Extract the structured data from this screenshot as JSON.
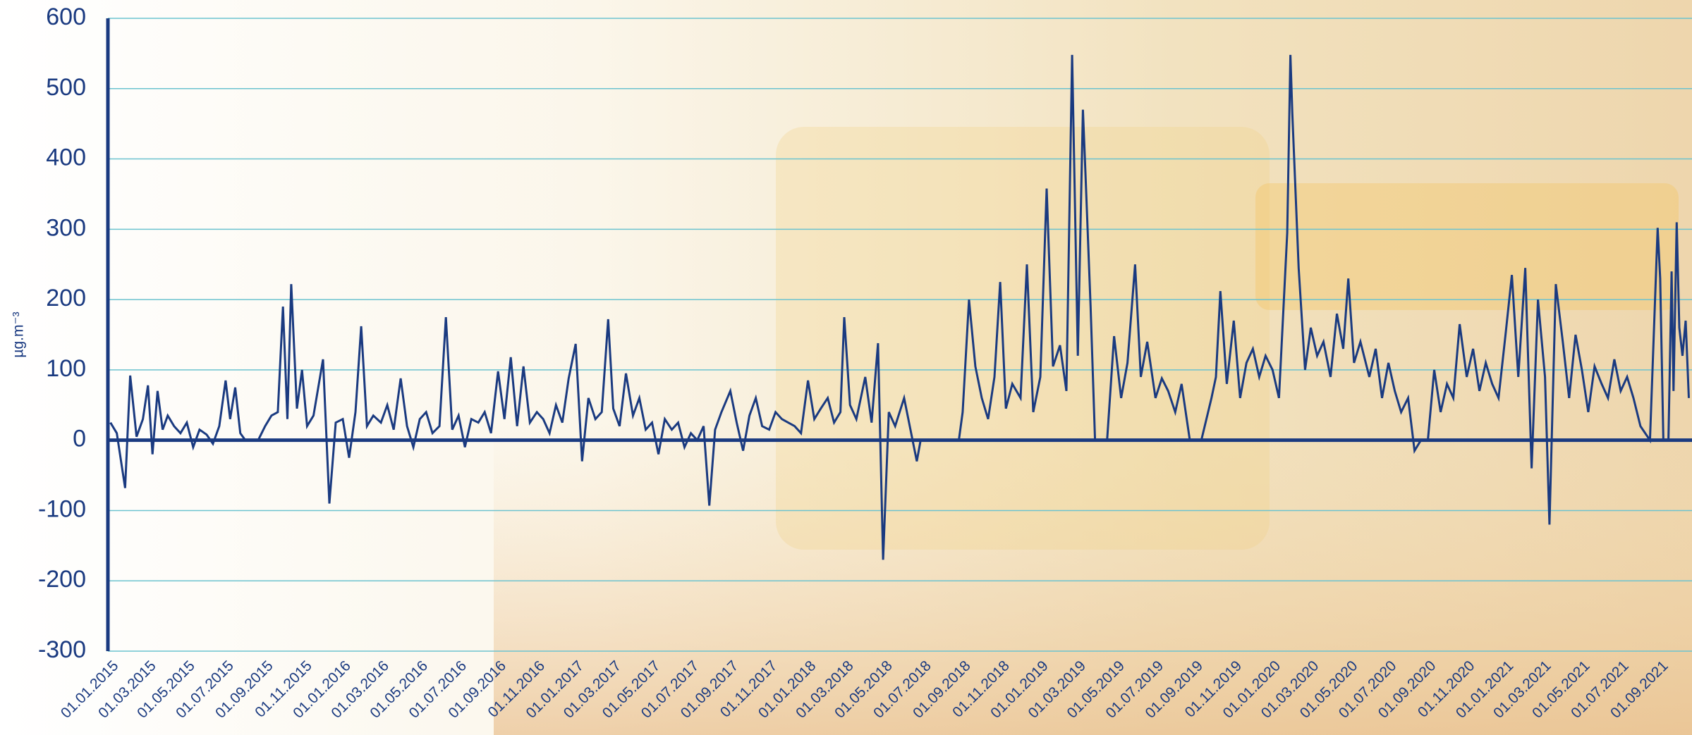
{
  "chart_data": {
    "type": "line",
    "y_label": "µg.m⁻³",
    "color": "#1a3a80",
    "grid": true,
    "grid_color": "#6cc3cf",
    "xlim": [
      "01.01.2015",
      "25.10.2021"
    ],
    "ylim": [
      -300,
      600
    ],
    "yticks": [
      -300,
      -200,
      -100,
      0,
      100,
      200,
      300,
      400,
      500,
      600
    ],
    "xticks": [
      "01.01.2015",
      "01.03.2015",
      "01.05.2015",
      "01.07.2015",
      "01.09.2015",
      "01.11.2015",
      "01.01.2016",
      "01.03.2016",
      "01.05.2016",
      "01.07.2016",
      "01.09.2016",
      "01.11.2016",
      "01.01.2017",
      "01.03.2017",
      "01.05.2017",
      "01.07.2017",
      "01.09.2017",
      "01.11.2017",
      "01.01.2018",
      "01.03.2018",
      "01.05.2018",
      "01.07.2018",
      "01.09.2018",
      "01.11.2018",
      "01.01.2019",
      "01.03.2019",
      "01.05.2019",
      "01.07.2019",
      "01.09.2019",
      "01.11.2019",
      "01.01.2020",
      "01.03.2020",
      "01.05.2020",
      "01.07.2020",
      "01.09.2020",
      "01.11.2020",
      "01.01.2021",
      "01.03.2021",
      "01.05.2021",
      "01.07.2021",
      "01.09.2021"
    ],
    "x": [
      "05.01.2015",
      "15.01.2015",
      "28.01.2015",
      "05.02.2015",
      "15.02.2015",
      "25.02.2015",
      "05.03.2015",
      "12.03.2015",
      "20.03.2015",
      "28.03.2015",
      "05.04.2015",
      "15.04.2015",
      "25.04.2015",
      "05.05.2015",
      "15.05.2015",
      "25.05.2015",
      "05.06.2015",
      "15.06.2015",
      "25.06.2015",
      "05.07.2015",
      "12.07.2015",
      "20.07.2015",
      "28.07.2015",
      "05.08.2015",
      "15.08.2015",
      "25.08.2015",
      "05.09.2015",
      "15.09.2015",
      "25.09.2015",
      "03.10.2015",
      "10.10.2015",
      "16.10.2015",
      "25.10.2015",
      "02.11.2015",
      "10.11.2015",
      "20.11.2015",
      "05.12.2015",
      "15.12.2015",
      "25.12.2015",
      "05.01.2016",
      "15.01.2016",
      "25.01.2016",
      "03.02.2016",
      "12.02.2016",
      "22.02.2016",
      "05.03.2016",
      "15.03.2016",
      "25.03.2016",
      "05.04.2016",
      "15.04.2016",
      "25.04.2016",
      "05.05.2016",
      "15.05.2016",
      "25.05.2016",
      "05.06.2016",
      "15.06.2016",
      "25.06.2016",
      "05.07.2016",
      "15.07.2016",
      "25.07.2016",
      "05.08.2016",
      "15.08.2016",
      "25.08.2016",
      "05.09.2016",
      "15.09.2016",
      "25.09.2016",
      "05.10.2016",
      "15.10.2016",
      "25.10.2016",
      "05.11.2016",
      "15.11.2016",
      "25.11.2016",
      "05.12.2016",
      "15.12.2016",
      "25.12.2016",
      "05.01.2017",
      "15.01.2017",
      "25.01.2017",
      "05.02.2017",
      "15.02.2017",
      "25.02.2017",
      "05.03.2017",
      "15.03.2017",
      "25.03.2017",
      "05.04.2017",
      "15.04.2017",
      "25.04.2017",
      "05.05.2017",
      "15.05.2017",
      "25.05.2017",
      "05.06.2017",
      "15.06.2017",
      "25.06.2017",
      "05.07.2017",
      "15.07.2017",
      "25.07.2017",
      "03.08.2017",
      "12.08.2017",
      "22.08.2017",
      "05.09.2017",
      "15.09.2017",
      "25.09.2017",
      "05.10.2017",
      "15.10.2017",
      "25.10.2017",
      "05.11.2017",
      "15.11.2017",
      "25.11.2017",
      "05.12.2017",
      "15.12.2017",
      "25.12.2017",
      "05.01.2018",
      "15.01.2018",
      "25.01.2018",
      "05.02.2018",
      "15.02.2018",
      "25.02.2018",
      "03.03.2018",
      "12.03.2018",
      "22.03.2018",
      "05.04.2018",
      "15.04.2018",
      "25.04.2018",
      "03.05.2018",
      "12.05.2018",
      "22.05.2018",
      "05.06.2018",
      "15.06.2018",
      "25.06.2018",
      "01.07.2018",
      "15.07.2018",
      "30.07.2018",
      "15.08.2018",
      "30.08.2018",
      "05.09.2018",
      "15.09.2018",
      "25.09.2018",
      "05.10.2018",
      "15.10.2018",
      "25.10.2018",
      "03.11.2018",
      "12.11.2018",
      "22.11.2018",
      "05.12.2018",
      "15.12.2018",
      "25.12.2018",
      "05.01.2019",
      "15.01.2019",
      "25.01.2019",
      "05.02.2019",
      "15.02.2019",
      "24.02.2019",
      "05.03.2019",
      "13.03.2019",
      "17.03.2019",
      "25.03.2019",
      "01.04.2019",
      "20.04.2019",
      "01.05.2019",
      "12.05.2019",
      "22.05.2019",
      "03.06.2019",
      "12.06.2019",
      "22.06.2019",
      "05.07.2019",
      "15.07.2019",
      "25.07.2019",
      "05.08.2019",
      "15.08.2019",
      "28.08.2019",
      "15.09.2019",
      "01.10.2019",
      "08.10.2019",
      "15.10.2019",
      "25.10.2019",
      "05.11.2019",
      "15.11.2019",
      "25.11.2019",
      "05.12.2019",
      "15.12.2019",
      "25.12.2019",
      "05.01.2020",
      "15.01.2020",
      "28.01.2020",
      "02.02.2020",
      "05.02.2020",
      "15.02.2020",
      "25.02.2020",
      "05.03.2020",
      "15.03.2020",
      "25.03.2020",
      "05.04.2020",
      "15.04.2020",
      "25.04.2020",
      "03.05.2020",
      "12.05.2020",
      "22.05.2020",
      "05.06.2020",
      "15.06.2020",
      "25.06.2020",
      "05.07.2020",
      "15.07.2020",
      "25.07.2020",
      "05.08.2020",
      "15.08.2020",
      "25.08.2020",
      "05.09.2020",
      "15.09.2020",
      "25.09.2020",
      "05.10.2020",
      "15.10.2020",
      "25.10.2020",
      "05.11.2020",
      "15.11.2020",
      "25.11.2020",
      "05.12.2020",
      "15.12.2020",
      "25.12.2020",
      "05.01.2021",
      "15.01.2021",
      "25.01.2021",
      "05.02.2021",
      "15.02.2021",
      "25.02.2021",
      "08.03.2021",
      "15.03.2021",
      "25.03.2021",
      "05.04.2021",
      "15.04.2021",
      "25.04.2021",
      "05.05.2021",
      "15.05.2021",
      "25.05.2021",
      "05.06.2021",
      "15.06.2021",
      "25.06.2021",
      "05.07.2021",
      "15.07.2021",
      "25.07.2021",
      "05.08.2021",
      "20.08.2021",
      "01.09.2021",
      "05.09.2021",
      "10.09.2021",
      "18.09.2021",
      "23.09.2021",
      "26.09.2021",
      "01.10.2021",
      "05.10.2021",
      "10.10.2021",
      "15.10.2021",
      "20.10.2021"
    ],
    "values": [
      25,
      10,
      -68,
      92,
      5,
      30,
      78,
      -20,
      70,
      15,
      35,
      20,
      10,
      25,
      -10,
      15,
      8,
      -5,
      20,
      85,
      30,
      75,
      10,
      0,
      0,
      0,
      20,
      35,
      40,
      190,
      30,
      222,
      45,
      100,
      20,
      35,
      115,
      -90,
      25,
      30,
      -25,
      40,
      162,
      20,
      35,
      25,
      50,
      15,
      88,
      20,
      -10,
      30,
      40,
      10,
      20,
      175,
      15,
      35,
      -10,
      30,
      25,
      40,
      10,
      98,
      30,
      118,
      20,
      105,
      25,
      40,
      30,
      10,
      50,
      25,
      88,
      137,
      -30,
      60,
      30,
      40,
      172,
      45,
      20,
      95,
      35,
      60,
      15,
      25,
      -20,
      30,
      15,
      25,
      -10,
      10,
      0,
      20,
      -93,
      15,
      40,
      70,
      25,
      -15,
      35,
      60,
      20,
      15,
      40,
      30,
      25,
      20,
      10,
      85,
      30,
      45,
      60,
      25,
      40,
      175,
      50,
      30,
      90,
      25,
      138,
      -170,
      40,
      20,
      60,
      15,
      -30,
      0,
      0,
      0,
      0,
      0,
      40,
      200,
      105,
      60,
      30,
      90,
      225,
      45,
      80,
      60,
      250,
      40,
      90,
      358,
      105,
      135,
      70,
      548,
      120,
      470,
      380,
      190,
      0,
      0,
      148,
      60,
      110,
      250,
      90,
      140,
      60,
      88,
      70,
      40,
      80,
      0,
      0,
      60,
      90,
      212,
      80,
      170,
      60,
      110,
      130,
      90,
      120,
      100,
      60,
      295,
      548,
      465,
      245,
      100,
      160,
      120,
      140,
      90,
      180,
      130,
      230,
      110,
      140,
      90,
      130,
      60,
      110,
      70,
      40,
      60,
      -15,
      0,
      0,
      100,
      40,
      80,
      60,
      165,
      90,
      130,
      70,
      110,
      80,
      60,
      150,
      235,
      90,
      245,
      -40,
      200,
      90,
      -120,
      222,
      140,
      60,
      150,
      100,
      40,
      105,
      80,
      60,
      115,
      70,
      90,
      60,
      20,
      0,
      302,
      230,
      0,
      0,
      240,
      70,
      310,
      160,
      120,
      170,
      60
    ]
  }
}
